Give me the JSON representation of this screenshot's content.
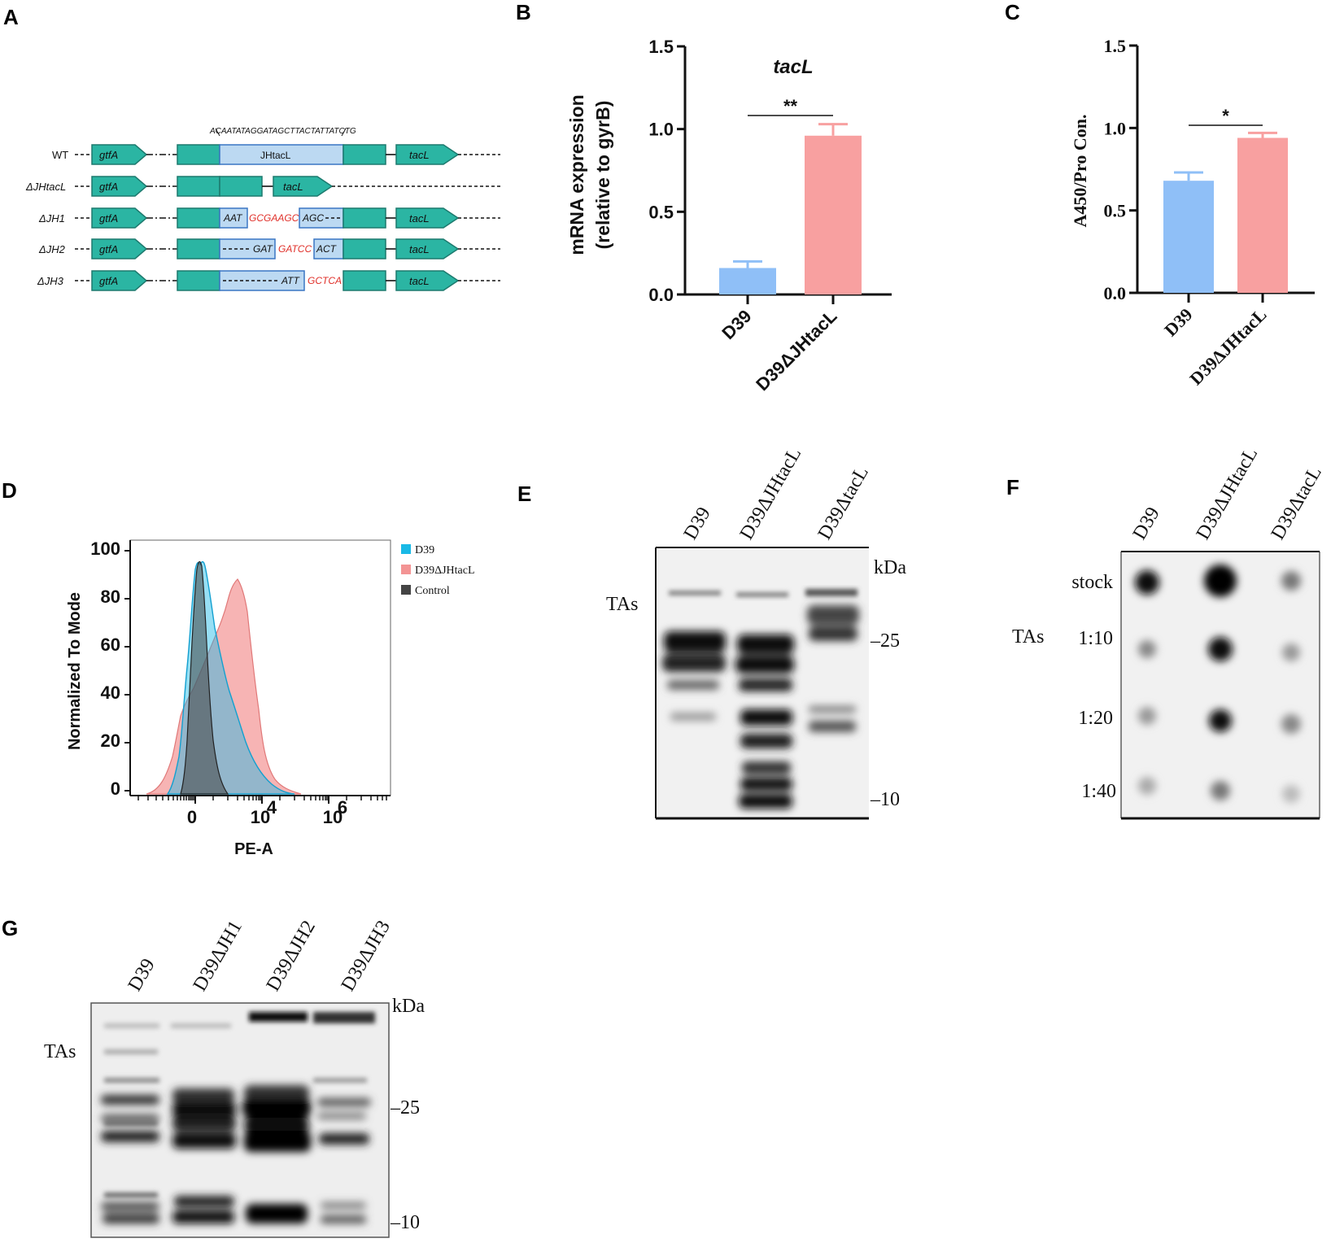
{
  "panel_letters": {
    "a": "A",
    "b": "B",
    "c": "C",
    "d": "D",
    "e": "E",
    "f": "F",
    "g": "G"
  },
  "panel_a": {
    "deletion_sequence": "ACAATATAGGATAGCTTACTATTATCTG",
    "rows": [
      {
        "label": "WT",
        "gene1": "gtfA",
        "box": "JHtacL",
        "gene2": "tacL"
      },
      {
        "label": "ΔJHtacL",
        "gene1": "gtfA",
        "gene2": "tacL"
      },
      {
        "label": "ΔJH1",
        "gene1": "gtfA",
        "seq_black1": "AAT",
        "seq_red": "GCGAAGC",
        "seq_black2": "AGC",
        "gene2": "tacL"
      },
      {
        "label": "ΔJH2",
        "gene1": "gtfA",
        "seq_black1": "GAT",
        "seq_red": "GATCC",
        "seq_black2": "ACT",
        "gene2": "tacL"
      },
      {
        "label": "ΔJH3",
        "gene1": "gtfA",
        "seq_black1": "ATT",
        "seq_red": "GCTCA",
        "gene2": "tacL"
      }
    ],
    "colors": {
      "gene": "#2bb5a3",
      "box": "#bcd9f2",
      "red_seq": "#e0302a"
    }
  },
  "chart_data": [
    {
      "id": "B",
      "type": "bar",
      "title": "tacL",
      "ylabel_line1": "mRNA expression",
      "ylabel_line2": "(relative to gyrB)",
      "categories": [
        "D39",
        "D39ΔJHtacL"
      ],
      "values": [
        0.16,
        0.96
      ],
      "errors": [
        0.04,
        0.07
      ],
      "yticks": [
        "0.0",
        "0.5",
        "1.0",
        "1.5"
      ],
      "ylim": [
        0,
        1.5
      ],
      "significance": "**",
      "colors": [
        "#8fbff7",
        "#f8a0a0"
      ]
    },
    {
      "id": "C",
      "type": "bar",
      "ylabel": "A450/Pro Con.",
      "categories": [
        "D39",
        "D39ΔJHtacL"
      ],
      "values": [
        0.68,
        0.94
      ],
      "errors": [
        0.05,
        0.03
      ],
      "yticks": [
        "0.0",
        "0.5",
        "1.0",
        "1.5"
      ],
      "ylim": [
        0,
        1.5
      ],
      "significance": "*",
      "colors": [
        "#8fbff7",
        "#f8a0a0"
      ]
    },
    {
      "id": "D",
      "type": "area",
      "xlabel": "PE-A",
      "ylabel": "Normalized To Mode",
      "yticks": [
        "0",
        "20",
        "40",
        "60",
        "80",
        "100"
      ],
      "xtick_base": "10",
      "xtick_exponents": [
        "0",
        "4",
        "6"
      ],
      "legend": [
        {
          "name": "D39",
          "color": "#19b9e6"
        },
        {
          "name": "D39ΔJHtacL",
          "color": "#f39494"
        },
        {
          "name": "Control",
          "color": "#444444"
        }
      ]
    }
  ],
  "panel_e": {
    "lanes": [
      "D39",
      "D39ΔJHtacL",
      "D39ΔtacL"
    ],
    "row_label": "TAs",
    "unit": "kDa",
    "markers": [
      "25",
      "10"
    ]
  },
  "panel_f": {
    "lanes": [
      "D39",
      "D39ΔJHtacL",
      "D39ΔtacL"
    ],
    "row_label": "TAs",
    "dilutions": [
      "stock",
      "1:10",
      "1:20",
      "1:40"
    ]
  },
  "panel_g": {
    "lanes": [
      "D39",
      "D39ΔJH1",
      "D39ΔJH2",
      "D39ΔJH3"
    ],
    "row_label": "TAs",
    "unit": "kDa",
    "markers": [
      "25",
      "10"
    ]
  }
}
